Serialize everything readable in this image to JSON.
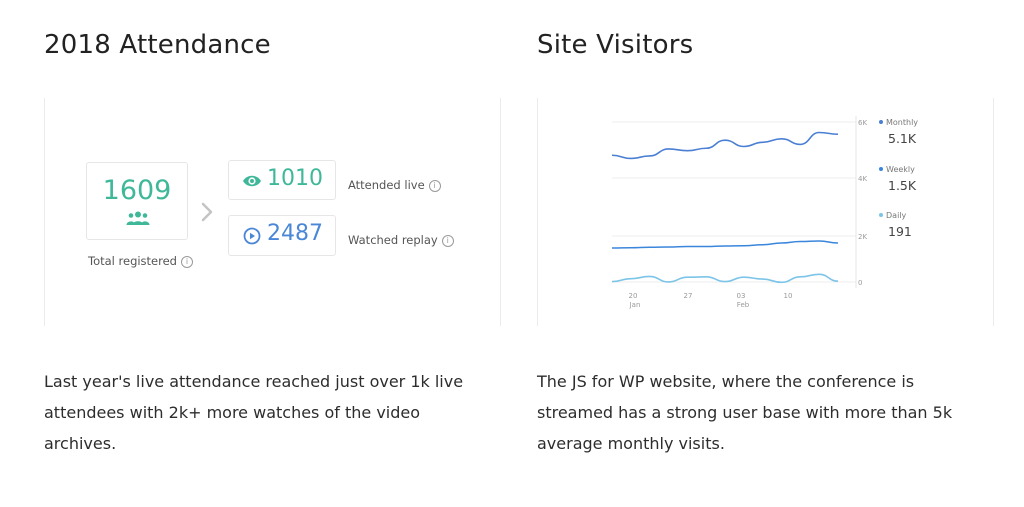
{
  "attendance": {
    "title": "2018 Attendance",
    "total_value": "1609",
    "total_label": "Total registered",
    "live_value": "1010",
    "live_label": "Attended live",
    "replay_value": "2487",
    "replay_label": "Watched replay",
    "description": "Last year's live attendance reached just over 1k live attendees with 2k+ more watches of the video archives.",
    "colors": {
      "live": "#3fb89a",
      "replay": "#4a87d6"
    },
    "icons": {
      "total": "people-icon",
      "live": "eye-icon",
      "replay": "play-circle-icon",
      "arrow": "chevron-right-icon",
      "info": "info-icon"
    }
  },
  "visitors": {
    "title": "Site Visitors",
    "description": "The JS for WP website, where the conference is streamed has a strong user base with more than 5k average monthly visits.",
    "legend": [
      {
        "name": "Monthly",
        "value": "5.1K",
        "color": "#4a7fd4"
      },
      {
        "name": "Weekly",
        "value": "1.5K",
        "color": "#3a86dc"
      },
      {
        "name": "Daily",
        "value": "191",
        "color": "#7cc4e8"
      }
    ]
  },
  "chart_data": {
    "type": "line",
    "x_ticks": [
      "20 Jan",
      "27",
      "03 Feb",
      "10"
    ],
    "y_ticks": [
      "0",
      "2K",
      "4K",
      "6K"
    ],
    "ylim": [
      0,
      6000
    ],
    "grid": true,
    "legend_position": "right",
    "series": [
      {
        "name": "Monthly",
        "color": "#4a7fd4",
        "values": [
          5050,
          4960,
          5030,
          5230,
          5180,
          5250,
          5480,
          5300,
          5420,
          5520,
          5360,
          5700,
          5650
        ]
      },
      {
        "name": "Weekly",
        "color": "#3a86dc",
        "values": [
          1440,
          1450,
          1470,
          1480,
          1500,
          1500,
          1520,
          1530,
          1570,
          1640,
          1700,
          1720,
          1640
        ]
      },
      {
        "name": "Daily",
        "color": "#7cc4e8",
        "values": [
          120,
          200,
          260,
          110,
          240,
          250,
          120,
          240,
          190,
          100,
          250,
          320,
          130
        ]
      }
    ]
  }
}
